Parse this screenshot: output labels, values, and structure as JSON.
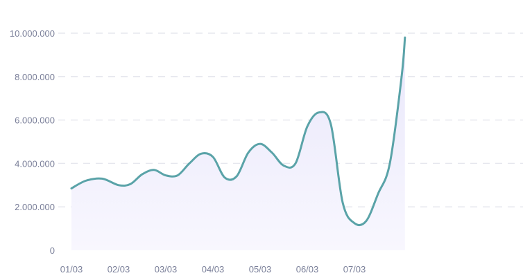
{
  "chart_data": {
    "type": "area",
    "title": "",
    "xlabel": "",
    "ylabel": "",
    "grid": true,
    "y_ticks": [
      "0",
      "2.000.000",
      "4.000.000",
      "6.000.000",
      "8.000.000",
      "10.000.000"
    ],
    "y_tick_values": [
      0,
      2000000,
      4000000,
      6000000,
      8000000,
      10000000
    ],
    "ylim": [
      0,
      10000000
    ],
    "x_ticks": [
      "01/03",
      "02/03",
      "03/03",
      "04/03",
      "05/03",
      "06/03",
      "07/03"
    ],
    "xlim": [
      1,
      8.07
    ],
    "series": [
      {
        "color": "#5aa3a8",
        "fill_top": "#e9e7fb",
        "fill_bottom": "#f8f7fe",
        "x": [
          1,
          1.3,
          1.65,
          2,
          2.25,
          2.5,
          2.75,
          3,
          3.25,
          3.5,
          3.75,
          4,
          4.25,
          4.5,
          4.75,
          5,
          5.25,
          5.5,
          5.75,
          6,
          6.25,
          6.5,
          6.75,
          7,
          7.25,
          7.5,
          7.75,
          8,
          8.07
        ],
        "y": [
          2850000,
          3200000,
          3300000,
          3000000,
          3050000,
          3500000,
          3700000,
          3450000,
          3450000,
          4000000,
          4450000,
          4300000,
          3350000,
          3400000,
          4500000,
          4900000,
          4500000,
          3900000,
          4000000,
          5700000,
          6350000,
          5800000,
          2200000,
          1250000,
          1350000,
          2600000,
          4000000,
          8000000,
          9800000
        ]
      }
    ]
  }
}
